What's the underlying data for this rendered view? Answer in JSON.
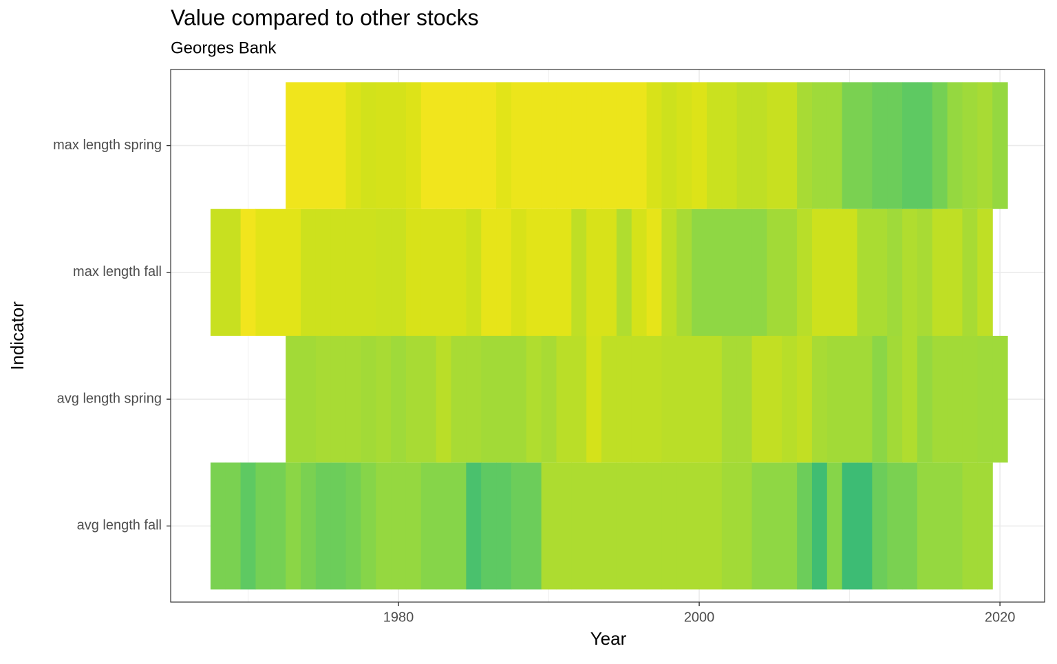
{
  "chart_data": {
    "type": "heatmap",
    "title": "Value compared to other stocks",
    "subtitle": "Georges Bank",
    "x_label": "Year",
    "y_label": "Indicator",
    "x": [
      1968,
      1969,
      1970,
      1971,
      1972,
      1973,
      1974,
      1975,
      1976,
      1977,
      1978,
      1979,
      1980,
      1981,
      1982,
      1983,
      1984,
      1985,
      1986,
      1987,
      1988,
      1989,
      1990,
      1991,
      1992,
      1993,
      1994,
      1995,
      1996,
      1997,
      1998,
      1999,
      2000,
      2001,
      2002,
      2003,
      2004,
      2005,
      2006,
      2007,
      2008,
      2009,
      2010,
      2011,
      2012,
      2013,
      2014,
      2015,
      2016,
      2017,
      2018,
      2019,
      2020
    ],
    "xlim": [
      1964.85,
      2022.97
    ],
    "xticks": [
      1980,
      2000,
      2020
    ],
    "xminorticks": [
      1970,
      1990,
      2010
    ],
    "grid": true,
    "series": [
      {
        "name": "avg length fall",
        "colors": [
          "#7ad151",
          "#7ad151",
          "#5ec962",
          "#75d054",
          "#75d054",
          "#8bd646",
          "#7ad151",
          "#6ccd5a",
          "#6ccd5a",
          "#75d054",
          "#86d549",
          "#95d840",
          "#95d840",
          "#95d840",
          "#86d549",
          "#86d549",
          "#86d549",
          "#4ac16d",
          "#5ec962",
          "#5ec962",
          "#6ccd5a",
          "#6ccd5a",
          "#addc30",
          "#addc30",
          "#addc30",
          "#addc30",
          "#addc30",
          "#addc30",
          "#addc30",
          "#addc30",
          "#addc30",
          "#addc30",
          "#addc30",
          "#addc30",
          "#a2da37",
          "#a2da37",
          "#8fd744",
          "#8fd744",
          "#8fd744",
          "#6ccd5a",
          "#40bd72",
          "#86d549",
          "#3dbc74",
          "#3dbc74",
          "#6ccd5a",
          "#7ad151",
          "#7ad151",
          "#95d840",
          "#95d840",
          "#95d840",
          "#a2da37",
          "#a2da37",
          null
        ]
      },
      {
        "name": "avg length spring",
        "colors": [
          null,
          null,
          null,
          null,
          null,
          "#a2da37",
          "#a2da37",
          "#a8db34",
          "#a8db34",
          "#a8db34",
          "#a2da37",
          "#a8db34",
          "#9fda3a",
          "#a8db34",
          "#a8db34",
          "#bade28",
          "#a8db34",
          "#a8db34",
          "#a2da37",
          "#a2da37",
          "#a2da37",
          "#b0dd2f",
          "#a8db34",
          "#bade28",
          "#bade28",
          "#d5e21a",
          "#bfdf25",
          "#bfdf25",
          "#bfdf25",
          "#bfdf25",
          "#bade28",
          "#bade28",
          "#bade28",
          "#bade28",
          "#a8db34",
          "#a8db34",
          "#c2df23",
          "#c2df23",
          "#b8de29",
          "#c2df23",
          "#a8db34",
          "#a2da37",
          "#a2da37",
          "#a2da37",
          "#8bd646",
          "#a2da37",
          "#b0dd2f",
          "#95d840",
          "#a2da37",
          "#a2da37",
          "#a2da37",
          "#9fda3a",
          "#9fda3a"
        ]
      },
      {
        "name": "max length fall",
        "colors": [
          "#c8e020",
          "#c8e020",
          "#f1e51d",
          "#e2e418",
          "#e2e418",
          "#e2e418",
          "#cde11d",
          "#cde11d",
          "#cde11d",
          "#cde11d",
          "#cde11d",
          "#cae11f",
          "#cae11f",
          "#d8e219",
          "#d8e219",
          "#d8e219",
          "#d8e219",
          "#cde11d",
          "#e7e419",
          "#e7e419",
          "#d8e219",
          "#e2e418",
          "#e2e418",
          "#e2e418",
          "#bfdf25",
          "#d8e219",
          "#d8e219",
          "#b0dd2f",
          "#d5e21a",
          "#e7e419",
          "#bfdf25",
          "#a8db34",
          "#8fd744",
          "#8fd744",
          "#8fd744",
          "#8fd744",
          "#8fd744",
          "#a2da37",
          "#a2da37",
          "#b8de29",
          "#cde11d",
          "#cde11d",
          "#cde11d",
          "#aadc32",
          "#aadc32",
          "#9fda3a",
          "#b0dd2f",
          "#a8db34",
          "#bfdf25",
          "#bfdf25",
          "#a8db34",
          "#bfdf25",
          null
        ]
      },
      {
        "name": "max length spring",
        "colors": [
          null,
          null,
          null,
          null,
          null,
          "#f0e51c",
          "#f0e51c",
          "#f0e51c",
          "#f0e51c",
          "#dce319",
          "#d2e21b",
          "#d5e21a",
          "#d5e21a",
          "#dde318",
          "#f1e51d",
          "#f1e51d",
          "#f1e51d",
          "#f1e51d",
          "#f1e51d",
          "#e2e418",
          "#ece51b",
          "#ece51b",
          "#ece51b",
          "#ece51b",
          "#ece51b",
          "#ece51b",
          "#ece51b",
          "#ece51b",
          "#ece51b",
          "#d8e219",
          "#cde11d",
          "#d5e21a",
          "#dde318",
          "#cae11f",
          "#cae11f",
          "#bfdf25",
          "#bfdf25",
          "#c8e020",
          "#c8e020",
          "#a8db34",
          "#9fda3a",
          "#9fda3a",
          "#7ad151",
          "#7ad151",
          "#6ccd5a",
          "#6ccd5a",
          "#5ec962",
          "#5ec962",
          "#75d054",
          "#95d840",
          "#9fda3a",
          "#a8db34",
          "#95d840"
        ]
      }
    ]
  }
}
